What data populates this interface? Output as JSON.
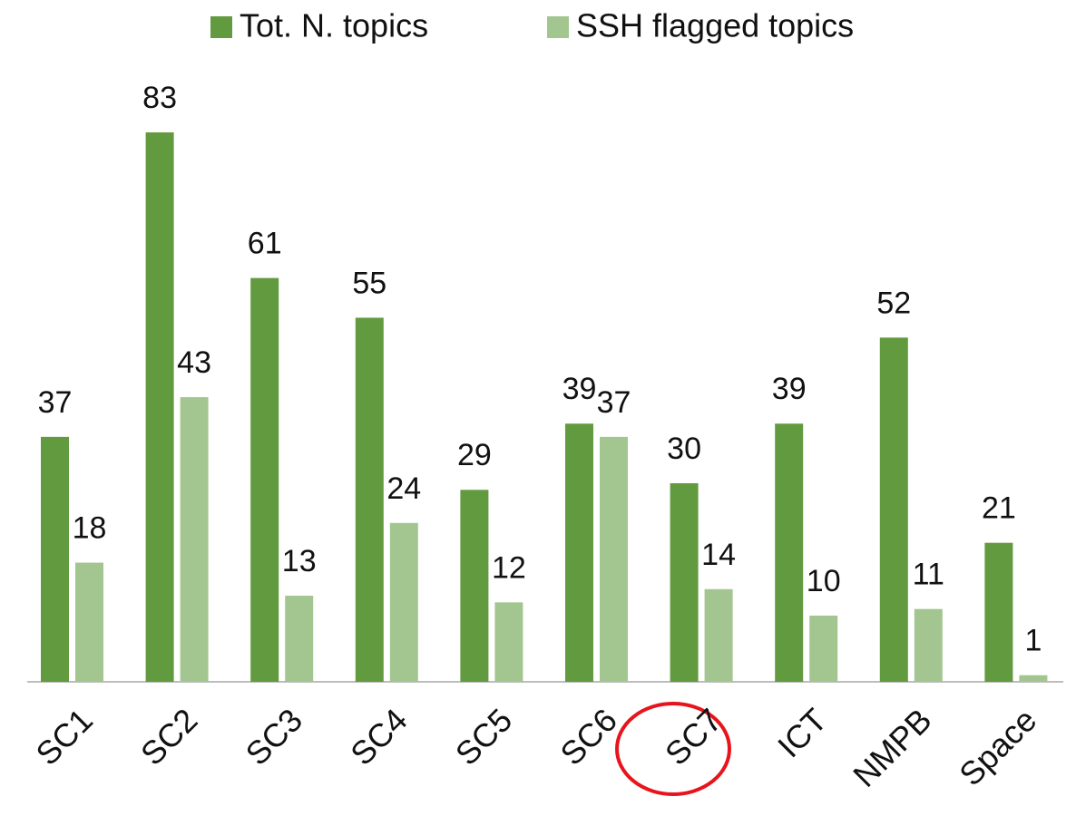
{
  "chart_data": {
    "type": "bar",
    "categories": [
      "SC1",
      "SC2",
      "SC3",
      "SC4",
      "SC5",
      "SC6",
      "SC7",
      "ICT",
      "NMPB",
      "Space"
    ],
    "series": [
      {
        "name": "Tot. N. topics",
        "color": "#629a3f",
        "values": [
          37,
          83,
          61,
          55,
          29,
          39,
          30,
          39,
          52,
          21
        ]
      },
      {
        "name": "SSH flagged topics",
        "color": "#a3c690",
        "values": [
          18,
          43,
          13,
          24,
          12,
          37,
          14,
          10,
          11,
          1
        ]
      }
    ],
    "legend": "top"
  }
}
